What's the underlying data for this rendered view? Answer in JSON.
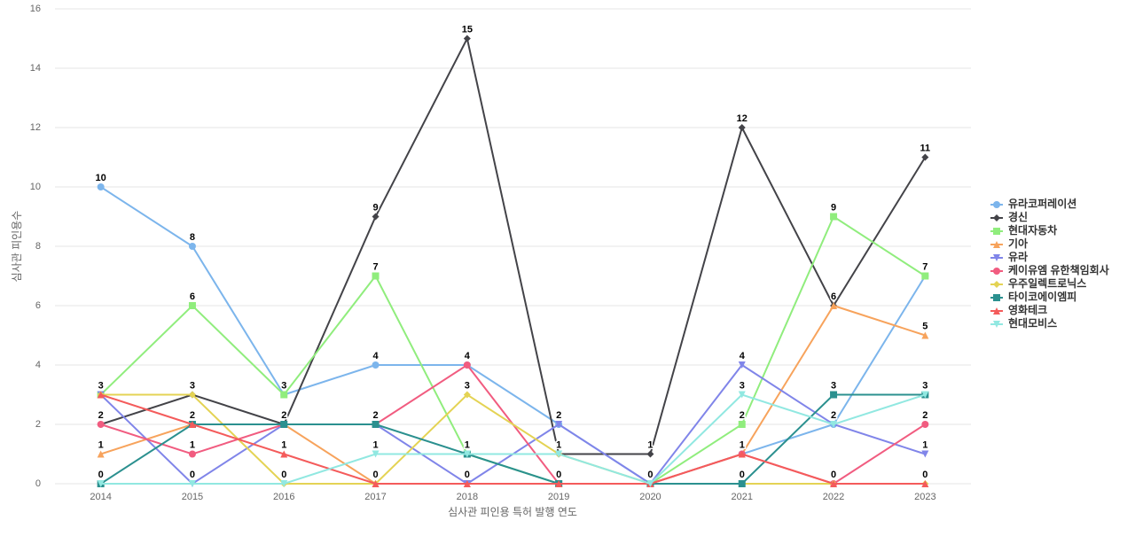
{
  "chart_data": {
    "type": "line",
    "x_label": "심사관 피인용 특허 발행 연도",
    "y_label": "심사관 피인용수",
    "categories": [
      "2014",
      "2015",
      "2016",
      "2017",
      "2018",
      "2019",
      "2020",
      "2021",
      "2022",
      "2023"
    ],
    "ylim": [
      0,
      16
    ],
    "yticks": [
      0,
      2,
      4,
      6,
      8,
      10,
      12,
      14,
      16
    ],
    "grid": true,
    "legend": "right",
    "series": [
      {
        "name": "유라코퍼레이션",
        "color": "#7cb5ec",
        "values": [
          10,
          8,
          3,
          4,
          4,
          2,
          0,
          1,
          2,
          7
        ]
      },
      {
        "name": "경신",
        "color": "#434348",
        "values": [
          2,
          3,
          2,
          9,
          15,
          1,
          1,
          12,
          6,
          11
        ]
      },
      {
        "name": "현대자동차",
        "color": "#90ed7d",
        "values": [
          3,
          6,
          3,
          7,
          1,
          0,
          0,
          2,
          9,
          7
        ]
      },
      {
        "name": "기아",
        "color": "#f7a35c",
        "values": [
          1,
          2,
          2,
          0,
          0,
          0,
          0,
          1,
          6,
          5
        ]
      },
      {
        "name": "유라",
        "color": "#8085e9",
        "values": [
          3,
          0,
          2,
          2,
          0,
          2,
          0,
          4,
          2,
          1
        ]
      },
      {
        "name": "케이유엠 유한책임회사",
        "color": "#f15c80",
        "values": [
          2,
          1,
          2,
          2,
          4,
          0,
          0,
          1,
          0,
          2
        ]
      },
      {
        "name": "우주일렉트로닉스",
        "color": "#e4d354",
        "values": [
          3,
          3,
          0,
          0,
          3,
          1,
          0,
          0,
          0,
          0
        ]
      },
      {
        "name": "타이코에이엠피",
        "color": "#2b908f",
        "values": [
          0,
          2,
          2,
          2,
          1,
          0,
          0,
          0,
          3,
          3
        ]
      },
      {
        "name": "영화테크",
        "color": "#f45b5b",
        "values": [
          3,
          2,
          1,
          0,
          0,
          0,
          0,
          1,
          0,
          0
        ]
      },
      {
        "name": "현대모비스",
        "color": "#91e8e1",
        "values": [
          0,
          0,
          0,
          1,
          1,
          1,
          0,
          3,
          2,
          3
        ]
      }
    ]
  }
}
